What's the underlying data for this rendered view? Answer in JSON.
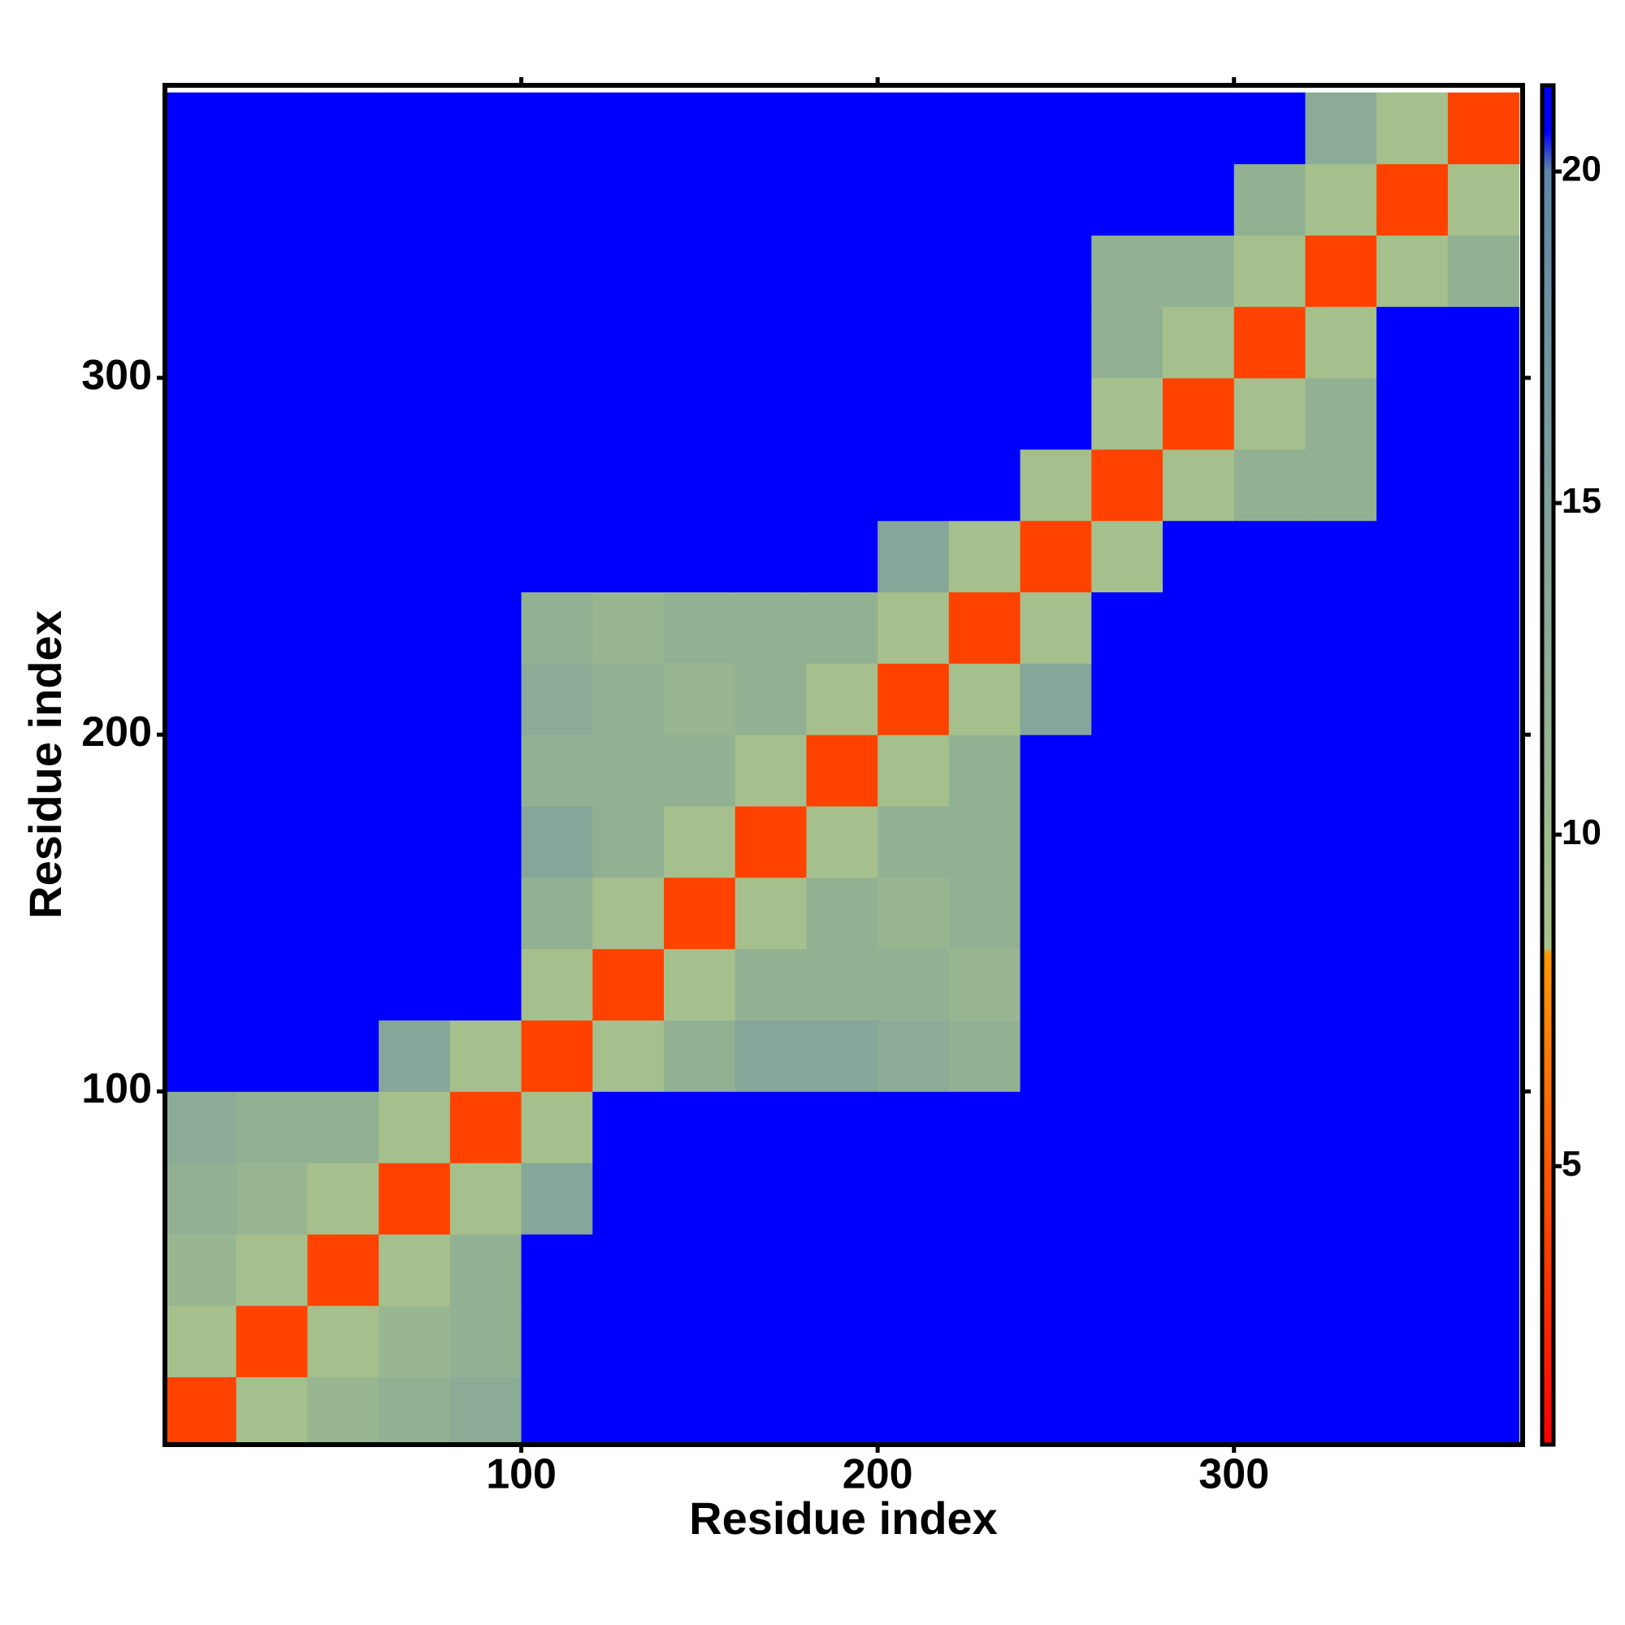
{
  "chart_data": {
    "type": "heatmap",
    "xlabel": "Residue index",
    "ylabel": "Residue index",
    "xlim": [
      0,
      381
    ],
    "ylim": [
      1,
      382
    ],
    "xticks": [
      100,
      200,
      300
    ],
    "yticks": [
      100,
      200,
      300
    ],
    "bin_edges": [
      0,
      20,
      40,
      60,
      80,
      100,
      120,
      140,
      160,
      180,
      200,
      220,
      240,
      260,
      280,
      300,
      320,
      340,
      360,
      380
    ],
    "z": [
      [
        4,
        9,
        11,
        12,
        13,
        21,
        21,
        21,
        21,
        21,
        21,
        21,
        21,
        21,
        21,
        21,
        21,
        21,
        21
      ],
      [
        9,
        4,
        9,
        11,
        12,
        21,
        21,
        21,
        21,
        21,
        21,
        21,
        21,
        21,
        21,
        21,
        21,
        21,
        21
      ],
      [
        11,
        9,
        4,
        9,
        12,
        21,
        21,
        21,
        21,
        21,
        21,
        21,
        21,
        21,
        21,
        21,
        21,
        21,
        21
      ],
      [
        12,
        11,
        9,
        4,
        9,
        14,
        21,
        21,
        21,
        21,
        21,
        21,
        21,
        21,
        21,
        21,
        21,
        21,
        21
      ],
      [
        13,
        12,
        12,
        9,
        4,
        9,
        21,
        21,
        21,
        21,
        21,
        21,
        21,
        21,
        21,
        21,
        21,
        21,
        21
      ],
      [
        21,
        21,
        21,
        14,
        9,
        4,
        9,
        12,
        14,
        14,
        13,
        12,
        21,
        21,
        21,
        21,
        21,
        21,
        21
      ],
      [
        21,
        21,
        21,
        21,
        21,
        9,
        4,
        9,
        12,
        12,
        12,
        11,
        21,
        21,
        21,
        21,
        21,
        21,
        21
      ],
      [
        21,
        21,
        21,
        21,
        21,
        12,
        9,
        4,
        9,
        12,
        11,
        12,
        21,
        21,
        21,
        21,
        21,
        21,
        21
      ],
      [
        21,
        21,
        21,
        21,
        21,
        14,
        12,
        9,
        4,
        9,
        12,
        12,
        21,
        21,
        21,
        21,
        21,
        21,
        21
      ],
      [
        21,
        21,
        21,
        21,
        21,
        12,
        12,
        12,
        9,
        4,
        9,
        12,
        21,
        21,
        21,
        21,
        21,
        21,
        21
      ],
      [
        21,
        21,
        21,
        21,
        21,
        13,
        12,
        11,
        12,
        9,
        4,
        9,
        14,
        21,
        21,
        21,
        21,
        21,
        21
      ],
      [
        21,
        21,
        21,
        21,
        21,
        12,
        11,
        12,
        12,
        12,
        9,
        4,
        9,
        21,
        21,
        21,
        21,
        21,
        21
      ],
      [
        21,
        21,
        21,
        21,
        21,
        21,
        21,
        21,
        21,
        21,
        14,
        9,
        4,
        9,
        21,
        21,
        21,
        21,
        21
      ],
      [
        21,
        21,
        21,
        21,
        21,
        21,
        21,
        21,
        21,
        21,
        21,
        21,
        9,
        4,
        9,
        12,
        12,
        21,
        21
      ],
      [
        21,
        21,
        21,
        21,
        21,
        21,
        21,
        21,
        21,
        21,
        21,
        21,
        21,
        9,
        4,
        9,
        12,
        21,
        21
      ],
      [
        21,
        21,
        21,
        21,
        21,
        21,
        21,
        21,
        21,
        21,
        21,
        21,
        21,
        12,
        9,
        4,
        9,
        21,
        21
      ],
      [
        21,
        21,
        21,
        21,
        21,
        21,
        21,
        21,
        21,
        21,
        21,
        21,
        21,
        12,
        12,
        9,
        4,
        9,
        12
      ],
      [
        21,
        21,
        21,
        21,
        21,
        21,
        21,
        21,
        21,
        21,
        21,
        21,
        21,
        21,
        21,
        12,
        9,
        4,
        9
      ],
      [
        21,
        21,
        21,
        21,
        21,
        21,
        21,
        21,
        21,
        21,
        21,
        21,
        21,
        21,
        21,
        21,
        13,
        9,
        4
      ]
    ],
    "clim": [
      0.8,
      21.3
    ],
    "colorbar_ticks": [
      5,
      10,
      15,
      20
    ],
    "colorscale": [
      {
        "value": 0.8,
        "color": "#ff0000"
      },
      {
        "value": 8.2,
        "color": "#ff9900"
      },
      {
        "value": 8.3,
        "color": "#a9c48a"
      },
      {
        "value": 20,
        "color": "#5f87a8"
      },
      {
        "value": 20.6,
        "color": "#0000ff"
      },
      {
        "value": 21.3,
        "color": "#0000ff"
      }
    ]
  }
}
